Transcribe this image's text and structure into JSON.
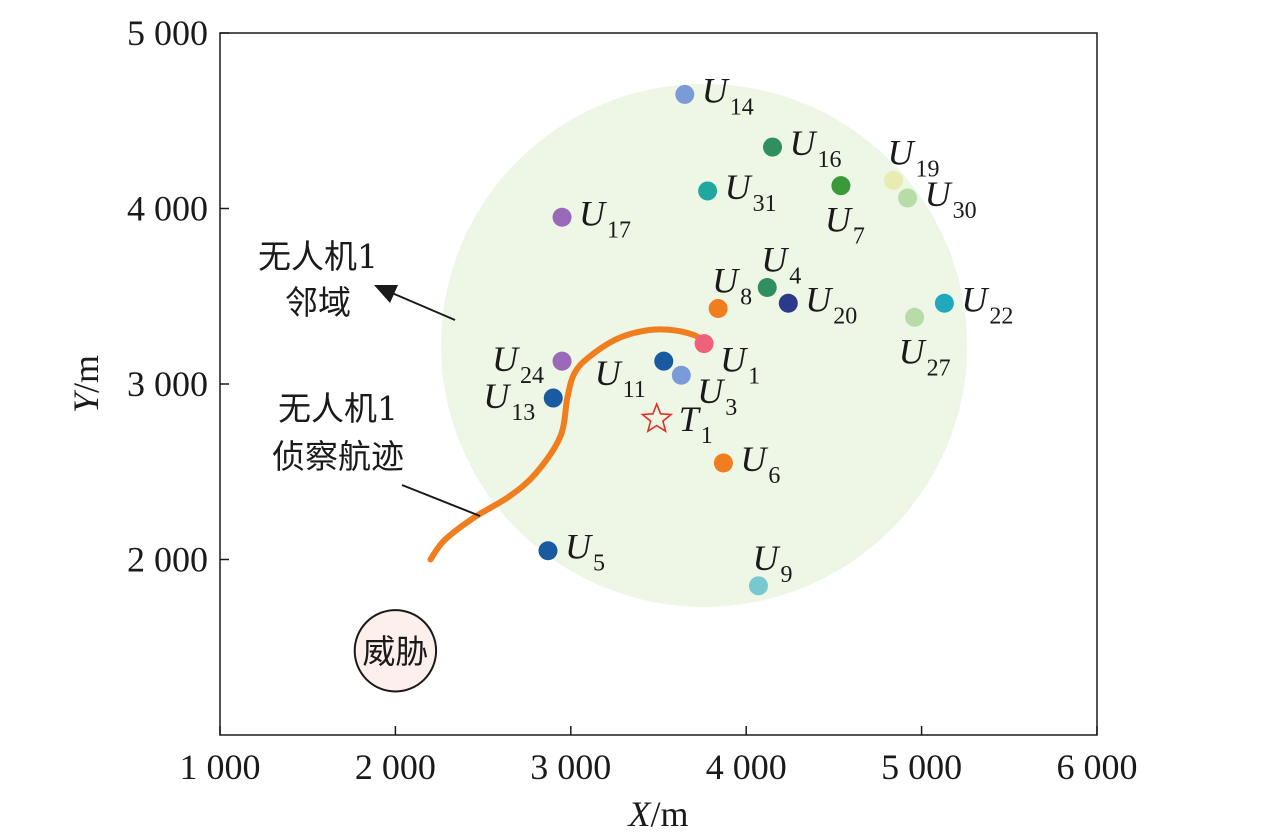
{
  "chart_data": {
    "type": "scatter",
    "xlabel": {
      "var": "X",
      "unit": "/m"
    },
    "ylabel": {
      "var": "Y",
      "unit": "/m"
    },
    "xlim": [
      1000,
      6000
    ],
    "ylim": [
      1000,
      5000
    ],
    "xticks": [
      {
        "value": 1000,
        "label": "1 000"
      },
      {
        "value": 2000,
        "label": "2 000"
      },
      {
        "value": 3000,
        "label": "3 000"
      },
      {
        "value": 4000,
        "label": "4 000"
      },
      {
        "value": 5000,
        "label": "5 000"
      },
      {
        "value": 6000,
        "label": "6 000"
      }
    ],
    "yticks": [
      {
        "value": 2000,
        "label": "2 000"
      },
      {
        "value": 3000,
        "label": "3 000"
      },
      {
        "value": 4000,
        "label": "4 000"
      },
      {
        "value": 5000,
        "label": "5 000"
      }
    ],
    "neighborhood": {
      "cx": 3760,
      "cy": 3220,
      "rx": 1500,
      "ry": 1490,
      "color": "#eef6e6",
      "label": [
        "无人机1",
        "邻域"
      ]
    },
    "track": {
      "color": "#f07d1e",
      "label": [
        "无人机1",
        "侦察航迹"
      ],
      "points": [
        [
          2200,
          2000
        ],
        [
          2280,
          2110
        ],
        [
          2450,
          2240
        ],
        [
          2650,
          2360
        ],
        [
          2800,
          2490
        ],
        [
          2940,
          2700
        ],
        [
          2980,
          2920
        ],
        [
          3020,
          3060
        ],
        [
          3100,
          3150
        ],
        [
          3250,
          3250
        ],
        [
          3400,
          3300
        ],
        [
          3550,
          3310
        ],
        [
          3700,
          3280
        ],
        [
          3780,
          3230
        ]
      ]
    },
    "threat": {
      "label": "威胁",
      "x": 2000,
      "y": 1480,
      "r_units": 290,
      "fill": "#fdf0ec"
    },
    "target": {
      "name": "T",
      "sub": "1",
      "x": 3490,
      "y": 2800,
      "color": "#e0302a"
    },
    "points": [
      {
        "name": "U",
        "sub": "1",
        "x": 3760,
        "y": 3230,
        "color": "#f0607a",
        "label_pos": "right-below"
      },
      {
        "name": "U",
        "sub": "3",
        "x": 3630,
        "y": 3050,
        "color": "#7b9ad8",
        "label_pos": "right-below"
      },
      {
        "name": "U",
        "sub": "4",
        "x": 4120,
        "y": 3550,
        "color": "#2f8f5f",
        "label_pos": "above"
      },
      {
        "name": "U",
        "sub": "5",
        "x": 2870,
        "y": 2050,
        "color": "#1a5aa0",
        "label_pos": "right"
      },
      {
        "name": "U",
        "sub": "6",
        "x": 3870,
        "y": 2550,
        "color": "#f07d1e",
        "label_pos": "right"
      },
      {
        "name": "U",
        "sub": "7",
        "x": 4540,
        "y": 4130,
        "color": "#3a9a3a",
        "label_pos": "below"
      },
      {
        "name": "U",
        "sub": "8",
        "x": 3840,
        "y": 3430,
        "color": "#f07d1e",
        "label_pos": "above"
      },
      {
        "name": "U",
        "sub": "9",
        "x": 4070,
        "y": 1850,
        "color": "#78c8d0",
        "label_pos": "above"
      },
      {
        "name": "U",
        "sub": "11",
        "x": 3530,
        "y": 3130,
        "color": "#1a5aa0",
        "label_pos": "left-below"
      },
      {
        "name": "U",
        "sub": "13",
        "x": 2900,
        "y": 2920,
        "color": "#1a5aa0",
        "label_pos": "left"
      },
      {
        "name": "U",
        "sub": "14",
        "x": 3650,
        "y": 4650,
        "color": "#7b9ad8",
        "label_pos": "right"
      },
      {
        "name": "U",
        "sub": "16",
        "x": 4150,
        "y": 4350,
        "color": "#2f8f5f",
        "label_pos": "right"
      },
      {
        "name": "U",
        "sub": "17",
        "x": 2950,
        "y": 3950,
        "color": "#9a6ab8",
        "label_pos": "right"
      },
      {
        "name": "U",
        "sub": "19",
        "x": 4840,
        "y": 4160,
        "color": "#e8ecb0",
        "label_pos": "above"
      },
      {
        "name": "U",
        "sub": "20",
        "x": 4240,
        "y": 3460,
        "color": "#2c3a8a",
        "label_pos": "right"
      },
      {
        "name": "U",
        "sub": "22",
        "x": 5130,
        "y": 3460,
        "color": "#20a8bc",
        "label_pos": "right"
      },
      {
        "name": "U",
        "sub": "24",
        "x": 2950,
        "y": 3130,
        "color": "#9a6ab8",
        "label_pos": "left"
      },
      {
        "name": "U",
        "sub": "27",
        "x": 4960,
        "y": 3380,
        "color": "#b8dca8",
        "label_pos": "below"
      },
      {
        "name": "U",
        "sub": "30",
        "x": 4920,
        "y": 4060,
        "color": "#b8dca8",
        "label_pos": "right"
      },
      {
        "name": "U",
        "sub": "31",
        "x": 3780,
        "y": 4100,
        "color": "#20a8a0",
        "label_pos": "right"
      }
    ]
  }
}
